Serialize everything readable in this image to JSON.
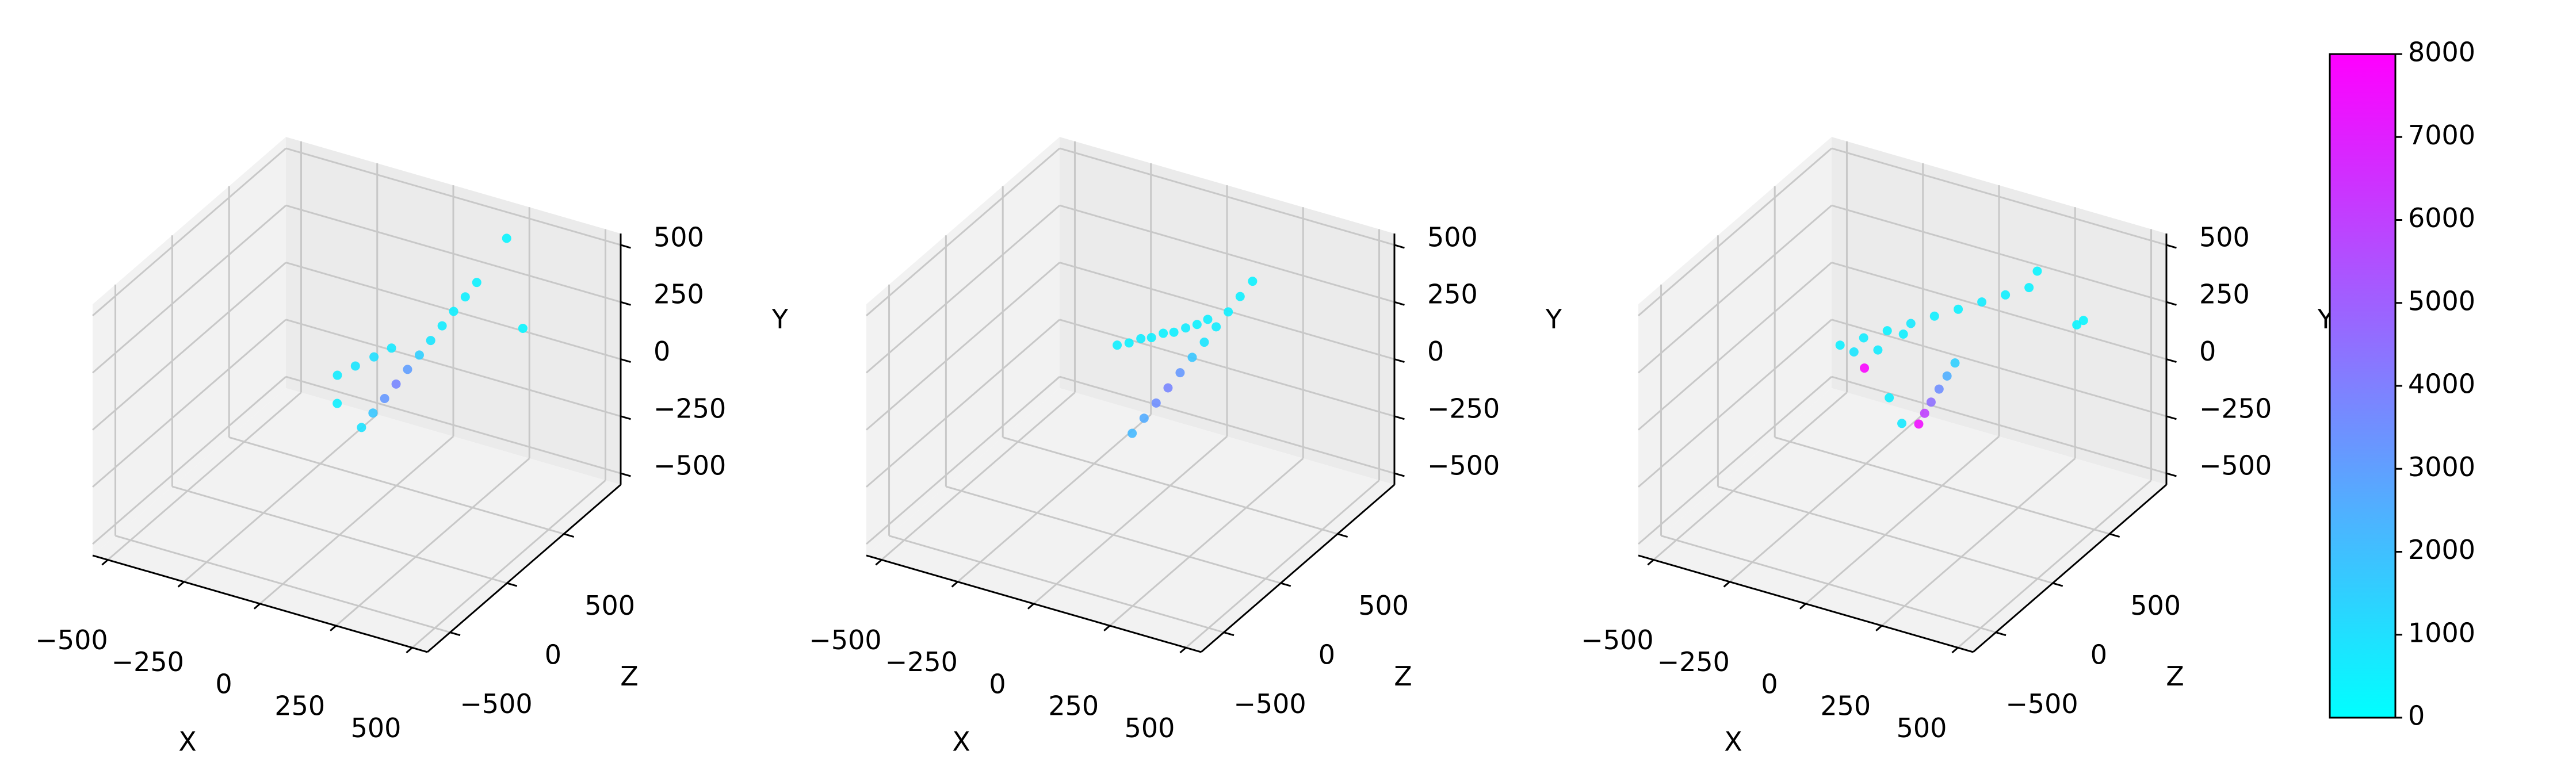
{
  "chart_data": [
    {
      "type": "scatter3d",
      "xlabel": "X",
      "ylabel": "Y",
      "zlabel": "Z",
      "xlim": [
        -550,
        550
      ],
      "ylim": [
        -550,
        550
      ],
      "zlim": [
        -700,
        1000
      ],
      "xticks": [
        {
          "value": -500,
          "label": "−500"
        },
        {
          "value": -250,
          "label": "−250"
        },
        0,
        250,
        500
      ],
      "yticks": [
        {
          "value": -500,
          "label": "−500"
        },
        {
          "value": -250,
          "label": "−250"
        },
        0,
        250,
        500
      ],
      "zticks": [
        {
          "value": -500,
          "label": "−500"
        },
        0,
        500
      ],
      "colormap": "cool",
      "clim": [
        0,
        8000
      ],
      "x": [
        -73,
        -54,
        -34,
        -15,
        4,
        24,
        43,
        62,
        81,
        101,
        120,
        -138,
        -120,
        -100,
        -82,
        -120,
        250,
        400
      ],
      "y": [
        -275,
        -226,
        -176,
        -127,
        -77,
        -28,
        22,
        72,
        121,
        171,
        220,
        -55,
        -55,
        -55,
        -55,
        -150,
        500,
        275
      ],
      "z": [
        388,
        438,
        487,
        537,
        587,
        637,
        686,
        736,
        786,
        835,
        885,
        350,
        460,
        570,
        676,
        300,
        800,
        541
      ],
      "c": [
        900,
        1800,
        3200,
        3800,
        3000,
        1500,
        800,
        600,
        500,
        500,
        400,
        600,
        800,
        1000,
        700,
        500,
        300,
        300
      ]
    },
    {
      "type": "scatter3d",
      "xlabel": "X",
      "ylabel": "Y",
      "zlabel": "Z",
      "xlim": [
        -550,
        550
      ],
      "ylim": [
        -550,
        550
      ],
      "zlim": [
        -700,
        1000
      ],
      "xticks": [
        {
          "value": -500,
          "label": "−500"
        },
        {
          "value": -250,
          "label": "−250"
        },
        0,
        250,
        500
      ],
      "yticks": [
        {
          "value": -500,
          "label": "−500"
        },
        {
          "value": -250,
          "label": "−250"
        },
        0,
        250,
        500
      ],
      "zticks": [
        {
          "value": -500,
          "label": "−500"
        },
        0,
        500
      ],
      "colormap": "cool",
      "clim": [
        0,
        8000
      ],
      "x": [
        -80,
        -60,
        -39,
        -19,
        2,
        22,
        43,
        63,
        84,
        104,
        125,
        -173,
        -150,
        -130,
        -110,
        -90,
        -70,
        -50,
        -35,
        -20
      ],
      "y": [
        -300,
        -248,
        -195,
        -143,
        -90,
        -38,
        15,
        68,
        120,
        173,
        225,
        0,
        0,
        5,
        0,
        5,
        0,
        5,
        0,
        5
      ],
      "z": [
        380,
        431,
        481,
        532,
        582,
        635,
        685,
        736,
        786,
        837,
        890,
        497,
        540,
        590,
        630,
        680,
        720,
        770,
        830,
        884
      ],
      "c": [
        2200,
        2600,
        3500,
        3800,
        3200,
        1800,
        800,
        600,
        500,
        500,
        400,
        500,
        400,
        600,
        500,
        400,
        500,
        600,
        400,
        500
      ]
    },
    {
      "type": "scatter3d",
      "xlabel": "X",
      "ylabel": "Y",
      "zlabel": "Z",
      "xlim": [
        -550,
        550
      ],
      "ylim": [
        -550,
        550
      ],
      "zlim": [
        -700,
        1000
      ],
      "xticks": [
        {
          "value": -500,
          "label": "−500"
        },
        {
          "value": -250,
          "label": "−250"
        },
        0,
        250,
        500
      ],
      "yticks": [
        {
          "value": -500,
          "label": "−500"
        },
        {
          "value": -250,
          "label": "−250"
        },
        0,
        250,
        500
      ],
      "zticks": [
        {
          "value": -500,
          "label": "−500"
        },
        0,
        500
      ],
      "colormap": "cool",
      "clim": [
        0,
        8000
      ],
      "x": [
        -90,
        -80,
        -70,
        -55,
        -40,
        -25,
        -294,
        -243,
        -192,
        -141,
        -90,
        -38,
        13,
        64,
        115,
        -260,
        -200,
        -150,
        -276,
        -202,
        -140,
        450,
        160,
        420
      ],
      "y": [
        -330,
        -290,
        -250,
        -200,
        -150,
        -100,
        0,
        21,
        41,
        62,
        83,
        103,
        124,
        144,
        165,
        -30,
        -20,
        30,
        -165,
        -275,
        -340,
        330,
        275,
        290
      ],
      "z": [
        535,
        560,
        590,
        620,
        650,
        680,
        389,
        460,
        531,
        602,
        673,
        743,
        814,
        885,
        956,
        420,
        470,
        560,
        555,
        575,
        520,
        538,
        908,
        560
      ],
      "c": [
        7500,
        6000,
        4500,
        3500,
        2500,
        1500,
        500,
        600,
        400,
        700,
        500,
        400,
        600,
        500,
        400,
        800,
        600,
        500,
        7800,
        500,
        700,
        300,
        300,
        300
      ]
    },
    {
      "type": "colorbar",
      "colormap": "cool",
      "clim": [
        0,
        8000
      ],
      "ticks": [
        0,
        1000,
        2000,
        3000,
        4000,
        5000,
        6000,
        7000,
        8000
      ]
    }
  ]
}
